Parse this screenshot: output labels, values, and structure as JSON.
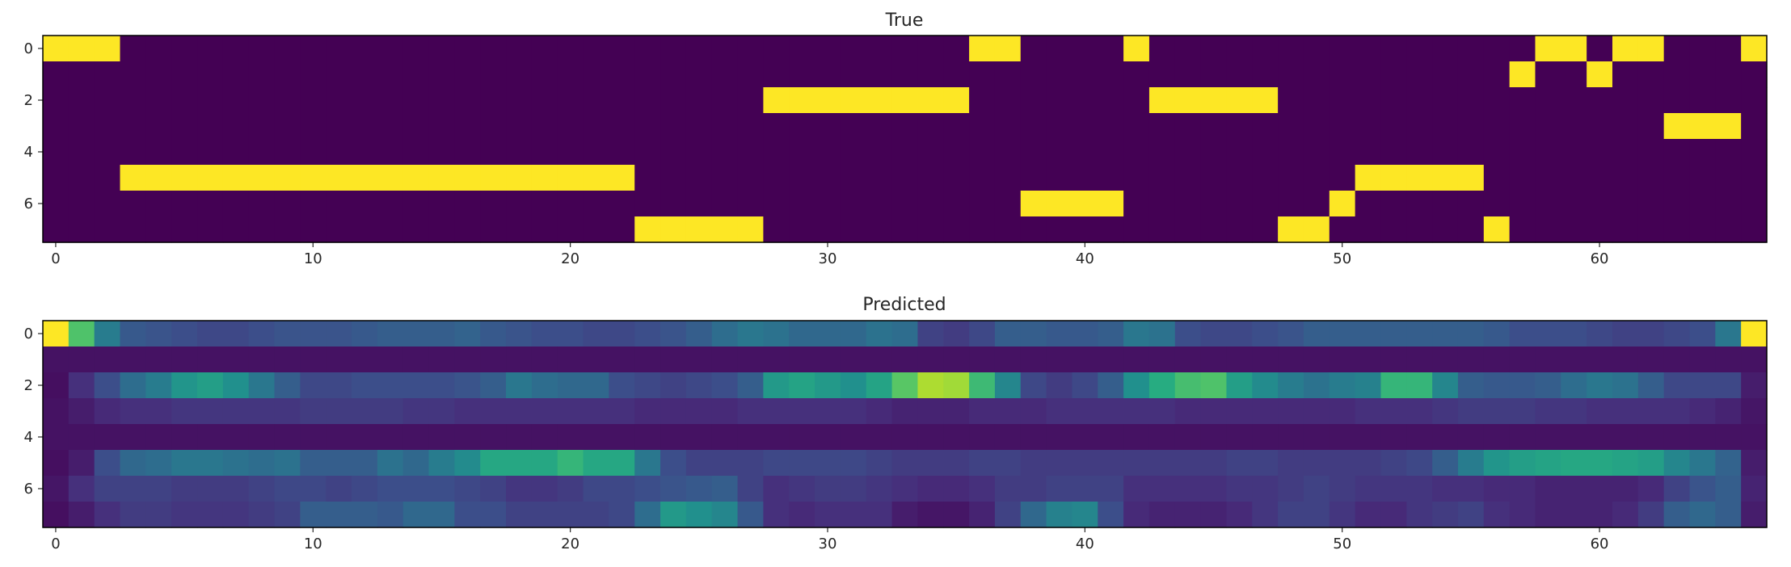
{
  "chart_data": [
    {
      "type": "heatmap",
      "title": "True",
      "colormap": "viridis",
      "value_range": [
        0,
        1
      ],
      "rows": 8,
      "cols": 67,
      "x_ticks": [
        0,
        10,
        20,
        30,
        40,
        50,
        60
      ],
      "y_ticks": [
        0,
        2,
        4,
        6
      ],
      "active_segments": [
        {
          "row": 0,
          "start": 0,
          "end": 2
        },
        {
          "row": 0,
          "start": 36,
          "end": 37
        },
        {
          "row": 0,
          "start": 42,
          "end": 42
        },
        {
          "row": 0,
          "start": 58,
          "end": 59
        },
        {
          "row": 0,
          "start": 61,
          "end": 62
        },
        {
          "row": 0,
          "start": 66,
          "end": 66
        },
        {
          "row": 1,
          "start": 57,
          "end": 57
        },
        {
          "row": 1,
          "start": 60,
          "end": 60
        },
        {
          "row": 2,
          "start": 28,
          "end": 35
        },
        {
          "row": 2,
          "start": 43,
          "end": 47
        },
        {
          "row": 3,
          "start": 63,
          "end": 65
        },
        {
          "row": 5,
          "start": 3,
          "end": 22
        },
        {
          "row": 5,
          "start": 51,
          "end": 55
        },
        {
          "row": 6,
          "start": 38,
          "end": 41
        },
        {
          "row": 6,
          "start": 50,
          "end": 50
        },
        {
          "row": 7,
          "start": 23,
          "end": 27
        },
        {
          "row": 7,
          "start": 48,
          "end": 49
        },
        {
          "row": 7,
          "start": 56,
          "end": 56
        }
      ]
    },
    {
      "type": "heatmap",
      "title": "Predicted",
      "colormap": "viridis",
      "value_range": [
        0,
        1
      ],
      "rows": 8,
      "cols": 67,
      "x_ticks": [
        0,
        10,
        20,
        30,
        40,
        50,
        60
      ],
      "y_ticks": [
        0,
        2,
        4,
        6
      ],
      "values": [
        [
          1.0,
          0.72,
          0.42,
          0.28,
          0.26,
          0.24,
          0.22,
          0.22,
          0.24,
          0.26,
          0.26,
          0.26,
          0.28,
          0.3,
          0.3,
          0.3,
          0.32,
          0.28,
          0.26,
          0.24,
          0.24,
          0.22,
          0.22,
          0.24,
          0.26,
          0.3,
          0.36,
          0.4,
          0.38,
          0.34,
          0.34,
          0.34,
          0.38,
          0.36,
          0.2,
          0.18,
          0.22,
          0.3,
          0.3,
          0.28,
          0.28,
          0.3,
          0.4,
          0.38,
          0.24,
          0.22,
          0.22,
          0.24,
          0.26,
          0.3,
          0.3,
          0.3,
          0.3,
          0.3,
          0.3,
          0.3,
          0.28,
          0.24,
          0.24,
          0.24,
          0.22,
          0.2,
          0.2,
          0.22,
          0.24,
          0.4,
          1.0
        ],
        [
          0.05,
          0.05,
          0.05,
          0.05,
          0.05,
          0.05,
          0.05,
          0.05,
          0.05,
          0.05,
          0.05,
          0.05,
          0.05,
          0.05,
          0.05,
          0.05,
          0.05,
          0.05,
          0.05,
          0.05,
          0.05,
          0.05,
          0.05,
          0.05,
          0.05,
          0.05,
          0.05,
          0.05,
          0.05,
          0.05,
          0.05,
          0.05,
          0.05,
          0.05,
          0.05,
          0.05,
          0.05,
          0.05,
          0.05,
          0.05,
          0.05,
          0.05,
          0.05,
          0.05,
          0.05,
          0.05,
          0.05,
          0.05,
          0.05,
          0.05,
          0.05,
          0.05,
          0.05,
          0.05,
          0.05,
          0.05,
          0.05,
          0.05,
          0.05,
          0.05,
          0.05,
          0.05,
          0.05,
          0.05,
          0.05,
          0.05,
          0.05
        ],
        [
          0.04,
          0.14,
          0.24,
          0.36,
          0.42,
          0.52,
          0.56,
          0.5,
          0.4,
          0.3,
          0.22,
          0.22,
          0.24,
          0.24,
          0.24,
          0.24,
          0.26,
          0.3,
          0.4,
          0.36,
          0.34,
          0.34,
          0.24,
          0.22,
          0.2,
          0.22,
          0.24,
          0.3,
          0.54,
          0.58,
          0.54,
          0.5,
          0.58,
          0.74,
          0.88,
          0.86,
          0.68,
          0.46,
          0.22,
          0.18,
          0.22,
          0.3,
          0.5,
          0.62,
          0.7,
          0.72,
          0.56,
          0.48,
          0.42,
          0.38,
          0.42,
          0.44,
          0.66,
          0.66,
          0.46,
          0.3,
          0.28,
          0.28,
          0.3,
          0.36,
          0.4,
          0.38,
          0.3,
          0.22,
          0.22,
          0.22,
          0.08
        ],
        [
          0.05,
          0.08,
          0.12,
          0.14,
          0.14,
          0.16,
          0.16,
          0.16,
          0.16,
          0.16,
          0.18,
          0.18,
          0.18,
          0.18,
          0.16,
          0.16,
          0.14,
          0.14,
          0.14,
          0.14,
          0.14,
          0.14,
          0.14,
          0.12,
          0.12,
          0.12,
          0.12,
          0.14,
          0.14,
          0.14,
          0.14,
          0.14,
          0.12,
          0.1,
          0.1,
          0.1,
          0.12,
          0.12,
          0.12,
          0.14,
          0.14,
          0.14,
          0.14,
          0.14,
          0.12,
          0.12,
          0.12,
          0.12,
          0.12,
          0.12,
          0.12,
          0.14,
          0.14,
          0.14,
          0.16,
          0.18,
          0.18,
          0.18,
          0.16,
          0.16,
          0.14,
          0.14,
          0.14,
          0.14,
          0.12,
          0.1,
          0.06
        ],
        [
          0.05,
          0.05,
          0.05,
          0.05,
          0.05,
          0.05,
          0.05,
          0.05,
          0.05,
          0.05,
          0.05,
          0.05,
          0.05,
          0.05,
          0.05,
          0.05,
          0.05,
          0.05,
          0.05,
          0.05,
          0.05,
          0.05,
          0.05,
          0.05,
          0.05,
          0.05,
          0.05,
          0.05,
          0.05,
          0.05,
          0.05,
          0.05,
          0.05,
          0.05,
          0.05,
          0.05,
          0.05,
          0.05,
          0.05,
          0.05,
          0.05,
          0.05,
          0.05,
          0.05,
          0.05,
          0.05,
          0.05,
          0.05,
          0.05,
          0.05,
          0.05,
          0.05,
          0.05,
          0.05,
          0.05,
          0.05,
          0.05,
          0.05,
          0.05,
          0.05,
          0.05,
          0.05,
          0.05,
          0.05,
          0.05,
          0.05,
          0.05
        ],
        [
          0.04,
          0.08,
          0.24,
          0.34,
          0.36,
          0.4,
          0.4,
          0.38,
          0.36,
          0.38,
          0.3,
          0.3,
          0.3,
          0.38,
          0.34,
          0.42,
          0.48,
          0.6,
          0.6,
          0.6,
          0.66,
          0.6,
          0.6,
          0.4,
          0.24,
          0.2,
          0.2,
          0.2,
          0.22,
          0.22,
          0.22,
          0.22,
          0.2,
          0.18,
          0.18,
          0.18,
          0.2,
          0.2,
          0.18,
          0.18,
          0.18,
          0.18,
          0.18,
          0.18,
          0.18,
          0.18,
          0.2,
          0.2,
          0.18,
          0.18,
          0.18,
          0.18,
          0.2,
          0.22,
          0.3,
          0.42,
          0.52,
          0.56,
          0.58,
          0.6,
          0.6,
          0.58,
          0.56,
          0.46,
          0.4,
          0.32,
          0.08
        ],
        [
          0.06,
          0.14,
          0.2,
          0.2,
          0.2,
          0.18,
          0.18,
          0.18,
          0.2,
          0.22,
          0.22,
          0.2,
          0.22,
          0.24,
          0.24,
          0.24,
          0.22,
          0.2,
          0.16,
          0.16,
          0.18,
          0.22,
          0.22,
          0.24,
          0.26,
          0.28,
          0.3,
          0.2,
          0.14,
          0.16,
          0.18,
          0.18,
          0.16,
          0.14,
          0.12,
          0.12,
          0.14,
          0.18,
          0.18,
          0.2,
          0.2,
          0.2,
          0.14,
          0.14,
          0.14,
          0.14,
          0.16,
          0.16,
          0.18,
          0.2,
          0.18,
          0.16,
          0.16,
          0.16,
          0.14,
          0.14,
          0.12,
          0.12,
          0.1,
          0.1,
          0.1,
          0.1,
          0.12,
          0.2,
          0.26,
          0.3,
          0.1
        ],
        [
          0.04,
          0.08,
          0.14,
          0.18,
          0.18,
          0.16,
          0.16,
          0.16,
          0.18,
          0.2,
          0.3,
          0.3,
          0.3,
          0.28,
          0.34,
          0.34,
          0.24,
          0.24,
          0.2,
          0.2,
          0.2,
          0.2,
          0.22,
          0.36,
          0.54,
          0.5,
          0.46,
          0.28,
          0.14,
          0.12,
          0.14,
          0.14,
          0.14,
          0.08,
          0.06,
          0.06,
          0.1,
          0.2,
          0.34,
          0.44,
          0.46,
          0.24,
          0.12,
          0.1,
          0.1,
          0.1,
          0.12,
          0.16,
          0.2,
          0.2,
          0.16,
          0.12,
          0.12,
          0.16,
          0.18,
          0.2,
          0.14,
          0.12,
          0.1,
          0.1,
          0.1,
          0.12,
          0.18,
          0.3,
          0.34,
          0.3,
          0.08
        ]
      ]
    }
  ]
}
